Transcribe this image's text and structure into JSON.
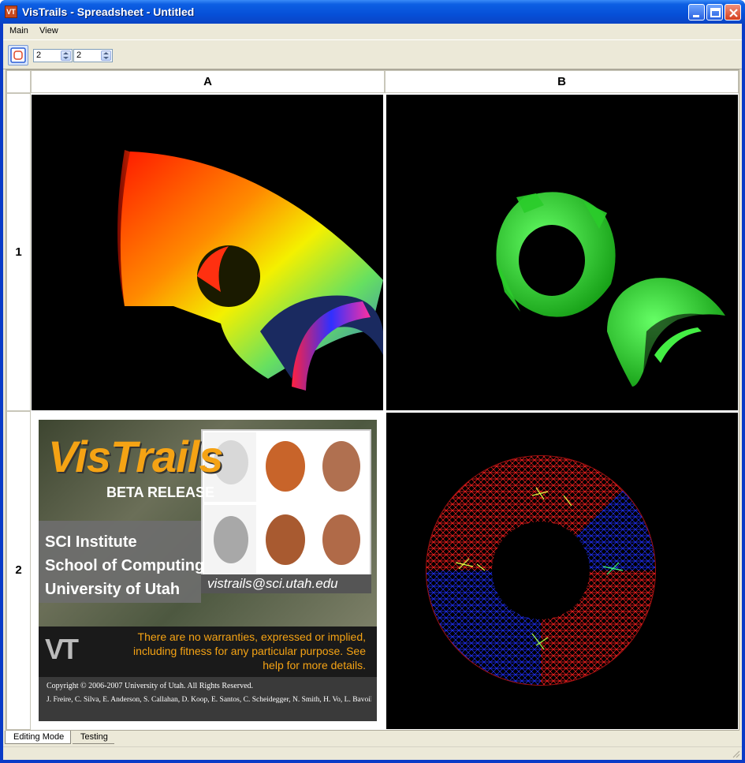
{
  "window": {
    "title": "VisTrails - Spreadsheet - Untitled",
    "app_icon_text": "VT"
  },
  "menu": {
    "items": [
      {
        "label": "Main"
      },
      {
        "label": "View"
      }
    ]
  },
  "toolbar": {
    "rows_value": "2",
    "cols_value": "2"
  },
  "sheet": {
    "column_headers": [
      "A",
      "B"
    ],
    "row_headers": [
      "1",
      "2"
    ]
  },
  "splash": {
    "title": "VisTrails",
    "subtitle": "BETA RELEASE",
    "institute_lines": [
      "SCI Institute",
      "School of Computing",
      "University of Utah"
    ],
    "email": "vistrails@sci.utah.edu",
    "logo_text": "VT",
    "warranty_lines": [
      "There are no warranties, expressed or implied,",
      "including fitness for any particular purpose. See",
      "help for more details."
    ],
    "copyright": "Copyright © 2006-2007 University of Utah. All Rights Reserved.",
    "authors": "J. Freire, C. Silva, E. Anderson, S. Callahan, D. Koop, E. Santos, C. Scheidegger, N. Smith, H. Vo, L. Bavoil"
  },
  "tabs": [
    {
      "label": "Editing Mode",
      "active": true
    },
    {
      "label": "Testing",
      "active": false
    }
  ],
  "colors": {
    "title_bar": "#0650d8",
    "chrome": "#ece9d8",
    "splash_orange": "#f5a314",
    "mesh_red": "#ff2020",
    "mesh_blue": "#2030ff",
    "iso_green": "#22dd22"
  }
}
